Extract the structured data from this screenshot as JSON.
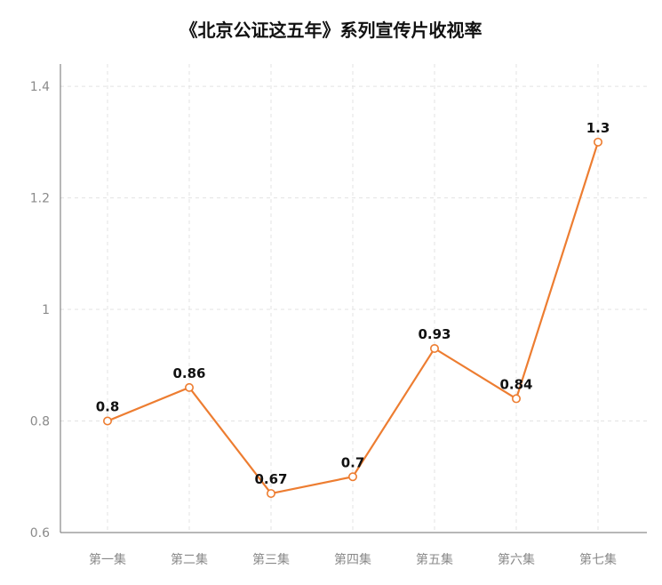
{
  "chart_data": {
    "type": "line",
    "title": "《北京公证这五年》系列宣传片收视率",
    "categories": [
      "第一集",
      "第二集",
      "第三集",
      "第四集",
      "第五集",
      "第六集",
      "第七集"
    ],
    "series": [
      {
        "values": [
          0.8,
          0.86,
          0.67,
          0.7,
          0.93,
          0.84,
          1.3
        ],
        "color": "#ed7d31"
      }
    ],
    "data_labels": [
      "0.8",
      "0.86",
      "0.67",
      "0.7",
      "0.93",
      "0.84",
      "1.3"
    ],
    "ylim": [
      0.6,
      1.44
    ],
    "yticks": [
      0.6,
      0.8,
      1,
      1.2,
      1.4
    ],
    "ytick_labels": [
      "0.6",
      "0.8",
      "1",
      "1.2",
      "1.4"
    ],
    "grid": true,
    "legend": "none"
  }
}
